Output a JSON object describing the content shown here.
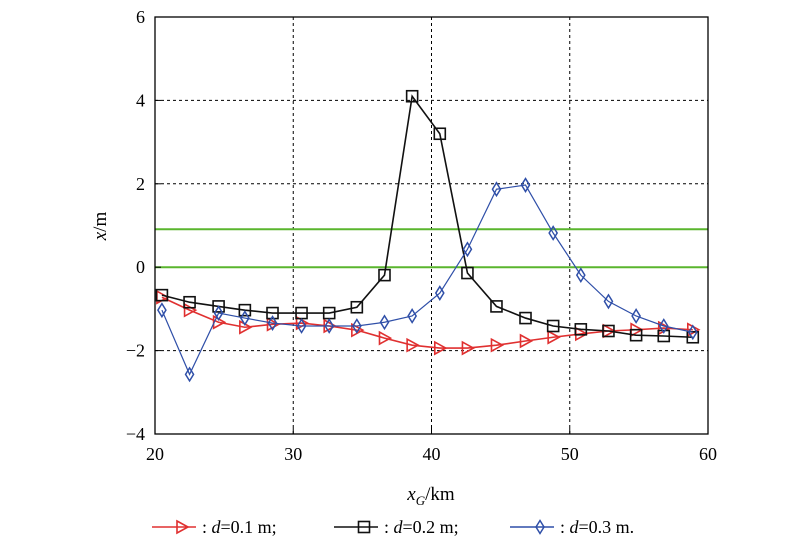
{
  "chart_data": {
    "type": "line",
    "xlabel_main": "x",
    "xlabel_sub": "G",
    "xlabel_unit": "/km",
    "ylabel_main": "x",
    "ylabel_unit": "/m",
    "xlim": [
      20,
      60
    ],
    "ylim": [
      -4,
      6
    ],
    "xticks": [
      "20",
      "30",
      "40",
      "50",
      "60"
    ],
    "yticks": [
      "−4",
      "−2",
      "0",
      "2",
      "4",
      "6"
    ],
    "grid": true,
    "reference_lines": {
      "y": [
        0,
        0.91
      ],
      "color": "#5ab52e"
    },
    "x": [
      20.5,
      22.5,
      24.6,
      26.5,
      28.5,
      30.6,
      32.6,
      34.6,
      36.6,
      38.6,
      40.6,
      42.6,
      44.7,
      46.8,
      48.8,
      50.8,
      52.8,
      54.8,
      56.8,
      58.9
    ],
    "series": [
      {
        "name": "d=0.1 m",
        "color": "#e03030",
        "marker": "triangle-right",
        "values": [
          -0.72,
          -1.03,
          -1.32,
          -1.44,
          -1.37,
          -1.34,
          -1.41,
          -1.51,
          -1.7,
          -1.87,
          -1.94,
          -1.94,
          -1.87,
          -1.77,
          -1.68,
          -1.6,
          -1.53,
          -1.5,
          -1.46,
          -1.5
        ]
      },
      {
        "name": "d=0.2 m",
        "color": "#111111",
        "marker": "square",
        "values": [
          -0.67,
          -0.84,
          -0.94,
          -1.03,
          -1.1,
          -1.1,
          -1.1,
          -0.96,
          -0.19,
          4.1,
          3.2,
          -0.14,
          -0.94,
          -1.22,
          -1.41,
          -1.49,
          -1.53,
          -1.63,
          -1.65,
          -1.68
        ]
      },
      {
        "name": "d=0.3 m",
        "color": "#2f4fa8",
        "marker": "diamond",
        "values": [
          -1.03,
          -2.57,
          -1.1,
          -1.22,
          -1.34,
          -1.41,
          -1.41,
          -1.41,
          -1.32,
          -1.17,
          -0.62,
          0.43,
          1.87,
          1.97,
          0.82,
          -0.19,
          -0.82,
          -1.17,
          -1.41,
          -1.56
        ]
      }
    ],
    "legend": {
      "placement": "bottom",
      "items": [
        {
          "prefix": ": ",
          "var": "d",
          "text": "=0.1 m;"
        },
        {
          "prefix": ": ",
          "var": "d",
          "text": "=0.2 m;"
        },
        {
          "prefix": ": ",
          "var": "d",
          "text": "=0.3 m."
        }
      ]
    }
  }
}
